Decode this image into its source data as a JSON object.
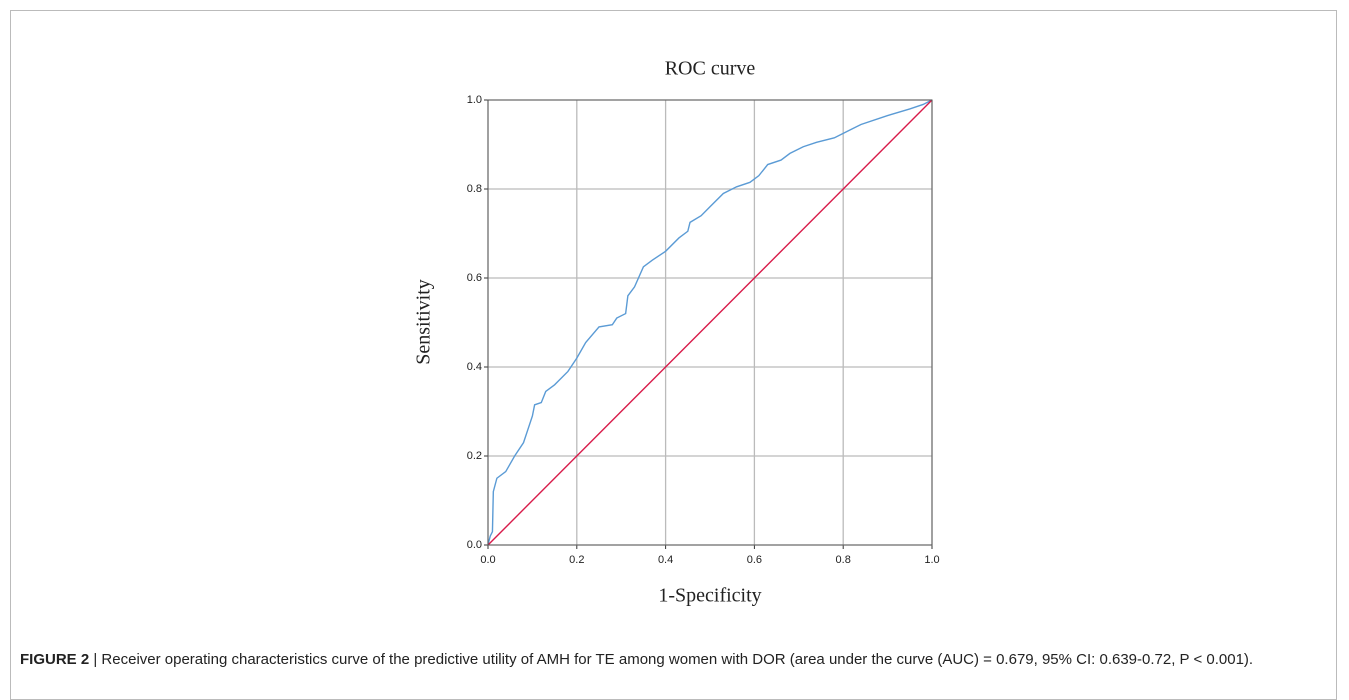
{
  "chart_data": {
    "type": "line",
    "title": "ROC curve",
    "x_label": "1-Specificity",
    "y_label": "Sensitivity",
    "xlim": [
      0,
      1
    ],
    "ylim": [
      0,
      1
    ],
    "xticks": [
      {
        "value": 0,
        "label": "0.0"
      },
      0.2,
      0.4,
      0.6,
      0.8,
      {
        "value": 1,
        "label": "1.0"
      }
    ],
    "yticks": [
      {
        "value": 0,
        "label": "0.0"
      },
      0.2,
      0.4,
      0.6,
      0.8,
      {
        "value": 1,
        "label": "1.0"
      }
    ],
    "grid": true,
    "series": [
      {
        "color": "#5b9bd5",
        "x": [
          0,
          0.005,
          0.01,
          0.012,
          0.02,
          0.04,
          0.06,
          0.08,
          0.09,
          0.1,
          0.105,
          0.12,
          0.13,
          0.15,
          0.18,
          0.2,
          0.22,
          0.25,
          0.28,
          0.29,
          0.31,
          0.315,
          0.33,
          0.35,
          0.37,
          0.4,
          0.43,
          0.45,
          0.455,
          0.48,
          0.5,
          0.53,
          0.56,
          0.59,
          0.61,
          0.63,
          0.66,
          0.68,
          0.71,
          0.74,
          0.78,
          0.8,
          0.84,
          0.9,
          0.95,
          0.98,
          1
        ],
        "values": [
          0,
          0.02,
          0.03,
          0.12,
          0.15,
          0.165,
          0.2,
          0.23,
          0.26,
          0.29,
          0.315,
          0.32,
          0.345,
          0.36,
          0.39,
          0.42,
          0.455,
          0.49,
          0.495,
          0.51,
          0.52,
          0.56,
          0.58,
          0.625,
          0.64,
          0.66,
          0.69,
          0.705,
          0.725,
          0.74,
          0.76,
          0.79,
          0.805,
          0.815,
          0.83,
          0.855,
          0.865,
          0.88,
          0.895,
          0.905,
          0.915,
          0.925,
          0.945,
          0.965,
          0.98,
          0.99,
          1
        ]
      },
      {
        "color": "#d81b4a",
        "x": [
          0,
          1
        ],
        "values": [
          0,
          1
        ]
      }
    ]
  },
  "caption": {
    "label": "FIGURE 2",
    "text": "| Receiver operating characteristics curve of the predictive utility of AMH for TE among women with DOR (area under the curve (AUC) = 0.679, 95% CI: 0.639-0.72, P < 0.001)."
  }
}
